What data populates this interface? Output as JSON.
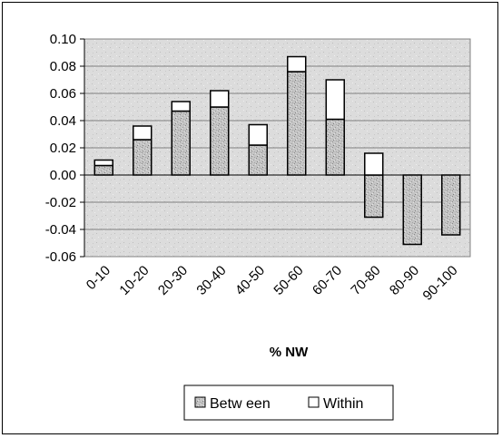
{
  "chart_data": {
    "type": "bar",
    "stacked": true,
    "categories": [
      "0-10",
      "10-20",
      "20-30",
      "30-40",
      "40-50",
      "50-60",
      "60-70",
      "70-80",
      "80-90",
      "90-100"
    ],
    "series": [
      {
        "name": "Betw een",
        "values": [
          0.007,
          0.026,
          0.047,
          0.05,
          0.022,
          0.076,
          0.041,
          -0.031,
          -0.051,
          -0.044
        ],
        "color": "#bdbdbd"
      },
      {
        "name": "Within",
        "values": [
          0.004,
          0.01,
          0.007,
          0.012,
          0.015,
          0.011,
          0.029,
          0.016,
          0.0,
          0.0
        ],
        "color": "#ffffff"
      }
    ],
    "xlabel": "% NW",
    "ylabel": "",
    "ylim": [
      -0.06,
      0.1
    ],
    "yticks": [
      "0.10",
      "0.08",
      "0.06",
      "0.04",
      "0.02",
      "0.00",
      "-0.02",
      "-0.04",
      "-0.06"
    ],
    "ytick_values": [
      0.1,
      0.08,
      0.06,
      0.04,
      0.02,
      0.0,
      -0.02,
      -0.04,
      -0.06
    ],
    "grid": true,
    "legend_position": "bottom"
  }
}
